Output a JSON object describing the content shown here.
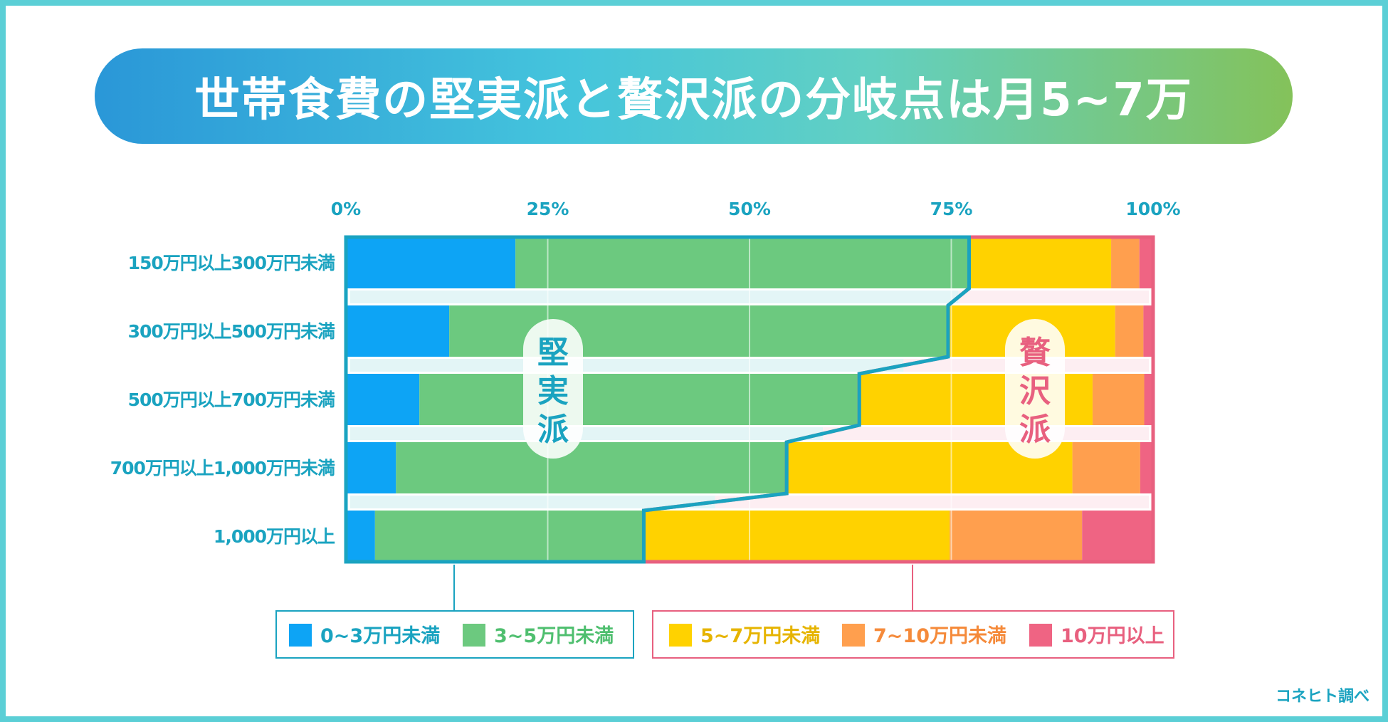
{
  "title": "世帯食費の堅実派と贅沢派の分岐点は月5~7万",
  "source": "コネヒト調べ",
  "zones": {
    "frugal": {
      "label": [
        "堅",
        "実",
        "派"
      ],
      "color": "#1aa3c0"
    },
    "luxury": {
      "label": [
        "贅",
        "沢",
        "派"
      ],
      "color": "#e8607f"
    }
  },
  "legend_groups": [
    {
      "name": "frugal",
      "series_indices": [
        0,
        1
      ],
      "border_color": "#1aa3c0"
    },
    {
      "name": "luxury",
      "series_indices": [
        2,
        3,
        4
      ],
      "border_color": "#e8607f"
    }
  ],
  "chart_data": {
    "type": "bar",
    "orientation": "horizontal",
    "stacked": "percent",
    "title": "世帯食費の堅実派と贅沢派の分岐点は月5~7万",
    "xlabel": "",
    "ylabel": "",
    "xlim": [
      0,
      100
    ],
    "x_ticks": [
      "0%",
      "25%",
      "50%",
      "75%",
      "100%"
    ],
    "grid": true,
    "legend_position": "bottom",
    "categories": [
      "150万円以上300万円未満",
      "300万円以上500万円未満",
      "500万円以上700万円未満",
      "700万円以上1,000万円未満",
      "1,000万円以上"
    ],
    "series": [
      {
        "name": "0~3万円未満",
        "color": "#0da4f5",
        "text_color": "#1aa3c0",
        "values": [
          21,
          12.8,
          9.1,
          6.2,
          3.6
        ]
      },
      {
        "name": "3~5万円未満",
        "color": "#6cc97f",
        "text_color": "#4fbf6f",
        "values": [
          56.2,
          61.8,
          54.5,
          48.4,
          33.3
        ]
      },
      {
        "name": "5~7万円未満",
        "color": "#ffd200",
        "text_color": "#e6b400",
        "values": [
          17.6,
          20.7,
          28.9,
          35.4,
          37.9
        ]
      },
      {
        "name": "7~10万円未満",
        "color": "#ff9f4e",
        "text_color": "#f58a3a",
        "values": [
          3.5,
          3.5,
          6.4,
          8.4,
          16.4
        ]
      },
      {
        "name": "10万円以上",
        "color": "#ef6483",
        "text_color": "#e8607f",
        "values": [
          1.7,
          1.2,
          1.1,
          1.6,
          8.8
        ]
      }
    ]
  }
}
